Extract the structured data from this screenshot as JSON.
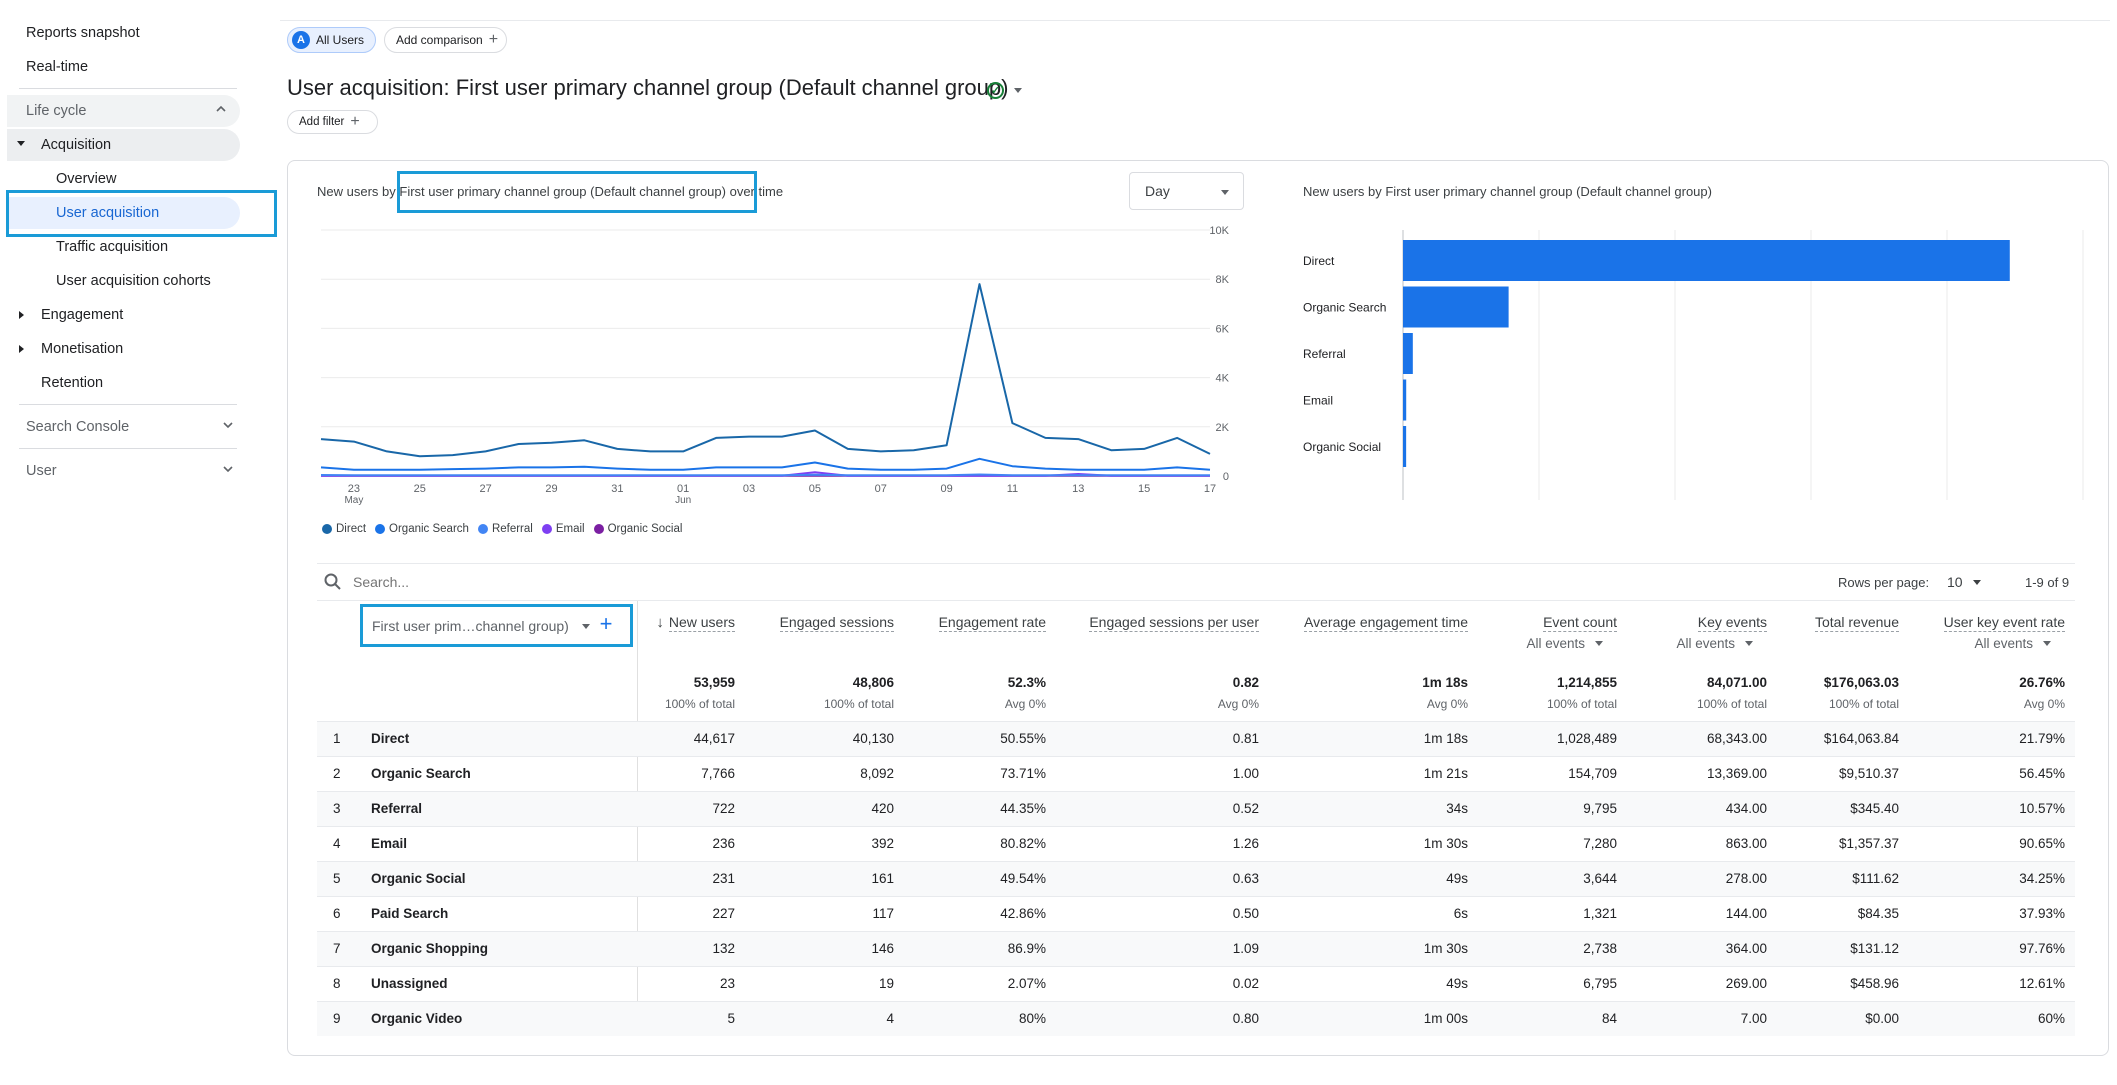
{
  "sidebar": {
    "reports_snapshot": "Reports snapshot",
    "realtime": "Real-time",
    "lifecycle": "Life cycle",
    "acquisition": "Acquisition",
    "overview": "Overview",
    "user_acquisition": "User acquisition",
    "traffic_acquisition": "Traffic acquisition",
    "user_acquisition_cohorts": "User acquisition cohorts",
    "engagement": "Engagement",
    "monetisation": "Monetisation",
    "retention": "Retention",
    "search_console": "Search Console",
    "user": "User"
  },
  "top": {
    "segment_avatar": "A",
    "segment_label": "All Users",
    "add_comparison": "Add comparison",
    "page_title": "User acquisition: First user primary channel group (Default channel group)",
    "add_filter": "Add filter"
  },
  "line_chart": {
    "title_prefix": "New users by ",
    "title_highlight": "First user primary channel group (Default channel group)",
    "title_suffix": " over time",
    "granularity": "Day",
    "y_ticks": [
      "10K",
      "8K",
      "6K",
      "4K",
      "2K",
      "0"
    ],
    "x_ticks": [
      "23",
      "25",
      "27",
      "29",
      "31",
      "01",
      "03",
      "05",
      "07",
      "09",
      "11",
      "13",
      "15",
      "17"
    ],
    "x_month_labels": [
      {
        "under": "23",
        "label": "May"
      },
      {
        "under": "01",
        "label": "Jun"
      }
    ]
  },
  "bar_chart": {
    "title": "New users by First user primary channel group (Default channel group)",
    "x_ticks": [
      "0",
      "10K",
      "20K",
      "30K",
      "40K",
      "50K"
    ]
  },
  "chart_data": [
    {
      "type": "line",
      "x": [
        "May 22",
        "May 23",
        "May 24",
        "May 25",
        "May 26",
        "May 27",
        "May 28",
        "May 29",
        "May 30",
        "May 31",
        "Jun 01",
        "Jun 02",
        "Jun 03",
        "Jun 04",
        "Jun 05",
        "Jun 06",
        "Jun 07",
        "Jun 08",
        "Jun 09",
        "Jun 10",
        "Jun 11",
        "Jun 12",
        "Jun 13",
        "Jun 14",
        "Jun 15",
        "Jun 16",
        "Jun 17",
        "Jun 18"
      ],
      "ylim": [
        0,
        10000
      ],
      "series": [
        {
          "name": "Direct",
          "color": "#1967a8",
          "values": [
            1500,
            1400,
            1000,
            800,
            850,
            1000,
            1300,
            1350,
            1450,
            1100,
            1000,
            1000,
            1550,
            1600,
            1600,
            1850,
            1100,
            1000,
            1050,
            1250,
            7800,
            2150,
            1550,
            1500,
            1050,
            1100,
            1550,
            900
          ]
        },
        {
          "name": "Organic Search",
          "color": "#1a73e8",
          "values": [
            350,
            250,
            250,
            250,
            280,
            300,
            350,
            350,
            380,
            300,
            250,
            250,
            350,
            350,
            350,
            550,
            300,
            250,
            250,
            300,
            700,
            400,
            300,
            250,
            250,
            250,
            350,
            250
          ]
        },
        {
          "name": "Referral",
          "color": "#4285f4",
          "values": [
            40,
            30,
            30,
            30,
            30,
            30,
            30,
            30,
            30,
            30,
            30,
            30,
            30,
            30,
            30,
            50,
            30,
            30,
            30,
            30,
            60,
            30,
            30,
            30,
            30,
            30,
            30,
            30
          ]
        },
        {
          "name": "Email",
          "color": "#7e3ff2",
          "values": [
            10,
            10,
            10,
            10,
            10,
            10,
            10,
            10,
            10,
            10,
            10,
            10,
            10,
            10,
            10,
            150,
            10,
            10,
            10,
            10,
            10,
            10,
            10,
            80,
            10,
            10,
            10,
            10
          ]
        },
        {
          "name": "Organic Social",
          "color": "#7b1fa2",
          "values": [
            10,
            10,
            10,
            10,
            10,
            10,
            10,
            10,
            10,
            10,
            10,
            10,
            10,
            10,
            10,
            10,
            10,
            10,
            10,
            10,
            10,
            10,
            10,
            10,
            10,
            10,
            10,
            10
          ]
        }
      ]
    },
    {
      "type": "bar",
      "orientation": "horizontal",
      "color": "#1a73e8",
      "categories": [
        "Direct",
        "Organic Search",
        "Referral",
        "Email",
        "Organic Social"
      ],
      "values": [
        44617,
        7766,
        722,
        236,
        231
      ],
      "xlim": [
        0,
        50000
      ]
    }
  ],
  "table": {
    "search_placeholder": "Search...",
    "rows_per_page_label": "Rows per page:",
    "rows_per_page": "10",
    "pagination": "1-9 of 9",
    "dimension_label": "First user prim…channel group)",
    "columns": [
      {
        "label": "New users",
        "sub": "",
        "total": "53,959",
        "total_sub": "100% of total"
      },
      {
        "label": "Engaged sessions",
        "sub": "",
        "total": "48,806",
        "total_sub": "100% of total"
      },
      {
        "label": "Engagement rate",
        "sub": "",
        "total": "52.3%",
        "total_sub": "Avg 0%"
      },
      {
        "label": "Engaged sessions per user",
        "sub": "",
        "total": "0.82",
        "total_sub": "Avg 0%"
      },
      {
        "label": "Average engagement time",
        "sub": "",
        "total": "1m 18s",
        "total_sub": "Avg 0%"
      },
      {
        "label": "Event count",
        "sub": "All events",
        "total": "1,214,855",
        "total_sub": "100% of total"
      },
      {
        "label": "Key events",
        "sub": "All events",
        "total": "84,071.00",
        "total_sub": "100% of total"
      },
      {
        "label": "Total revenue",
        "sub": "",
        "total": "$176,063.03",
        "total_sub": "100% of total"
      },
      {
        "label": "User key event rate",
        "sub": "All events",
        "total": "26.76%",
        "total_sub": "Avg 0%"
      }
    ],
    "rows": [
      {
        "idx": "1",
        "name": "Direct",
        "v": [
          "44,617",
          "40,130",
          "50.55%",
          "0.81",
          "1m 18s",
          "1,028,489",
          "68,343.00",
          "$164,063.84",
          "21.79%"
        ]
      },
      {
        "idx": "2",
        "name": "Organic Search",
        "v": [
          "7,766",
          "8,092",
          "73.71%",
          "1.00",
          "1m 21s",
          "154,709",
          "13,369.00",
          "$9,510.37",
          "56.45%"
        ]
      },
      {
        "idx": "3",
        "name": "Referral",
        "v": [
          "722",
          "420",
          "44.35%",
          "0.52",
          "34s",
          "9,795",
          "434.00",
          "$345.40",
          "10.57%"
        ]
      },
      {
        "idx": "4",
        "name": "Email",
        "v": [
          "236",
          "392",
          "80.82%",
          "1.26",
          "1m 30s",
          "7,280",
          "863.00",
          "$1,357.37",
          "90.65%"
        ]
      },
      {
        "idx": "5",
        "name": "Organic Social",
        "v": [
          "231",
          "161",
          "49.54%",
          "0.63",
          "49s",
          "3,644",
          "278.00",
          "$111.62",
          "34.25%"
        ]
      },
      {
        "idx": "6",
        "name": "Paid Search",
        "v": [
          "227",
          "117",
          "42.86%",
          "0.50",
          "6s",
          "1,321",
          "144.00",
          "$84.35",
          "37.93%"
        ]
      },
      {
        "idx": "7",
        "name": "Organic Shopping",
        "v": [
          "132",
          "146",
          "86.9%",
          "1.09",
          "1m 30s",
          "2,738",
          "364.00",
          "$131.12",
          "97.76%"
        ]
      },
      {
        "idx": "8",
        "name": "Unassigned",
        "v": [
          "23",
          "19",
          "2.07%",
          "0.02",
          "49s",
          "6,795",
          "269.00",
          "$458.96",
          "12.61%"
        ]
      },
      {
        "idx": "9",
        "name": "Organic Video",
        "v": [
          "5",
          "4",
          "80%",
          "0.80",
          "1m 00s",
          "84",
          "7.00",
          "$0.00",
          "60%"
        ]
      }
    ]
  }
}
